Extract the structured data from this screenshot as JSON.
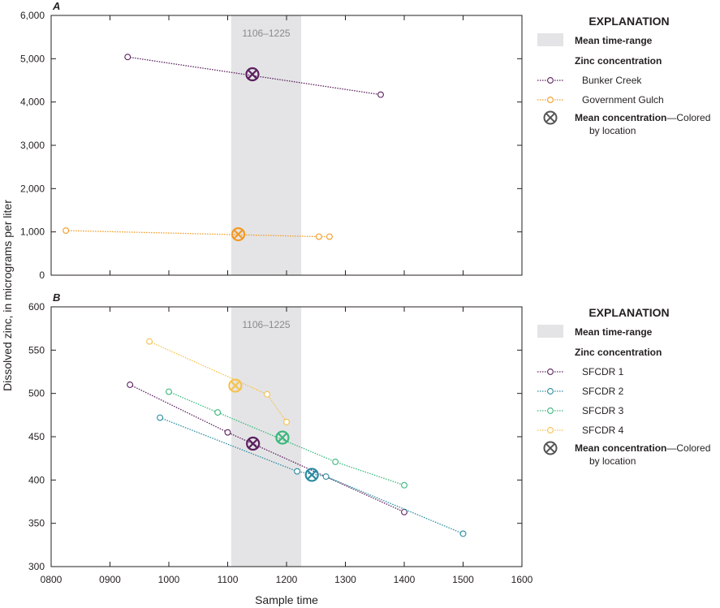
{
  "chart_data": [
    {
      "panel": "A",
      "type": "line",
      "xlabel": "Sample time",
      "ylabel": "Dissolved zinc, in micrograms per liter",
      "xlim": [
        800,
        1600
      ],
      "ylim": [
        0,
        6000
      ],
      "x_ticks": [
        "0800",
        "0900",
        "1000",
        "1100",
        "1200",
        "1300",
        "1400",
        "1500",
        "1600"
      ],
      "y_ticks": [
        "0",
        "1,000",
        "2,000",
        "3,000",
        "4,000",
        "5,000",
        "6,000"
      ],
      "mean_time_range": {
        "start": 1106,
        "end": 1225,
        "label": "1106–1225"
      },
      "series": [
        {
          "name": "Bunker Creek",
          "color": "#5b1f5e",
          "x": [
            930,
            1360
          ],
          "y": [
            5040,
            4170
          ],
          "mean": {
            "x": 1142,
            "y": 4640
          }
        },
        {
          "name": "Government Gulch",
          "color": "#f39a24",
          "x": [
            825,
            1255,
            1273
          ],
          "y": [
            1030,
            890,
            890
          ],
          "mean": {
            "x": 1118,
            "y": 945
          }
        }
      ],
      "legend": {
        "title": "EXPLANATION",
        "mean_range_label": "Mean time-range",
        "group_title": "Zinc concentration",
        "mean_label_bold": "Mean concentration",
        "mean_label_rest": "—Colored",
        "mean_label_line2": "by location"
      }
    },
    {
      "panel": "B",
      "type": "line",
      "xlabel": "Sample time",
      "ylabel": "Dissolved zinc, in micrograms per liter",
      "xlim": [
        800,
        1600
      ],
      "ylim": [
        300,
        600
      ],
      "x_ticks": [
        "0800",
        "0900",
        "1000",
        "1100",
        "1200",
        "1300",
        "1400",
        "1500",
        "1600"
      ],
      "y_ticks": [
        "300",
        "350",
        "400",
        "450",
        "500",
        "550",
        "600"
      ],
      "mean_time_range": {
        "start": 1106,
        "end": 1225,
        "label": "1106–1225"
      },
      "series": [
        {
          "name": "SFCDR 1",
          "color": "#5b1f5e",
          "x": [
            934,
            1100,
            1400
          ],
          "y": [
            510,
            455,
            363
          ],
          "mean": {
            "x": 1143,
            "y": 442
          }
        },
        {
          "name": "SFCDR 2",
          "color": "#2a8ba1",
          "x": [
            985,
            1218,
            1267,
            1500
          ],
          "y": [
            472,
            410,
            404,
            338
          ],
          "mean": {
            "x": 1243,
            "y": 406
          }
        },
        {
          "name": "SFCDR 3",
          "color": "#3ab87b",
          "x": [
            1000,
            1083,
            1283,
            1400
          ],
          "y": [
            502,
            478,
            421,
            394
          ],
          "mean": {
            "x": 1193,
            "y": 449
          }
        },
        {
          "name": "SFCDR 4",
          "color": "#f5c24e",
          "x": [
            967,
            1167,
            1200
          ],
          "y": [
            560,
            499,
            467
          ],
          "mean": {
            "x": 1113,
            "y": 509
          }
        }
      ],
      "legend": {
        "title": "EXPLANATION",
        "mean_range_label": "Mean time-range",
        "group_title": "Zinc concentration",
        "mean_label_bold": "Mean concentration",
        "mean_label_rest": "—Colored",
        "mean_label_line2": "by location"
      }
    }
  ]
}
